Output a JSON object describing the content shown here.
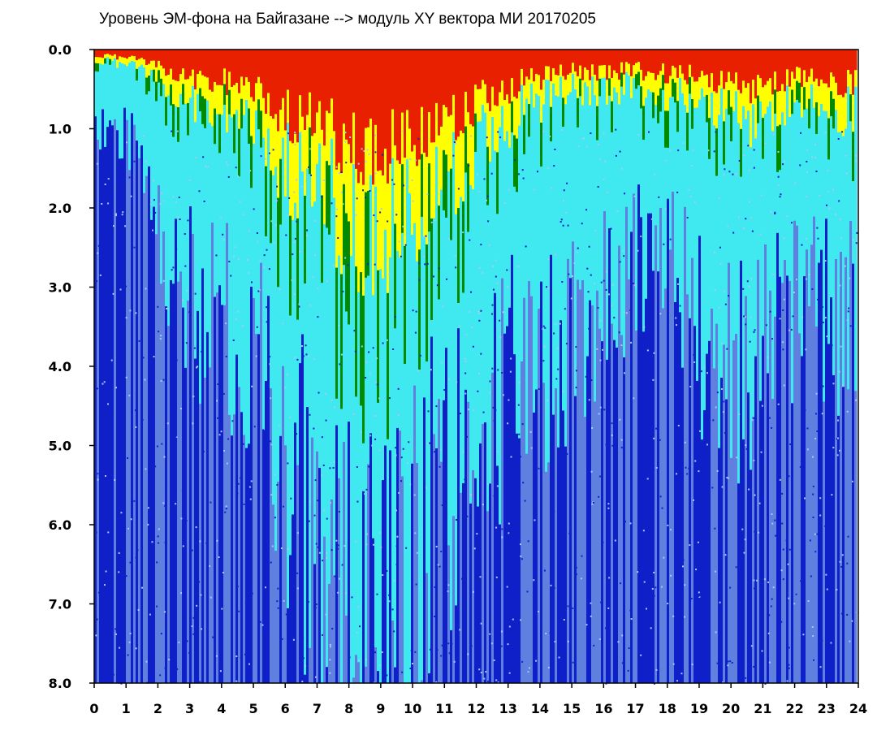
{
  "chart_data": {
    "type": "heatmap",
    "title": "Уровень ЭМ-фона на Байгазане  --> модуль XY вектора МИ  20170205",
    "xlabel": "",
    "ylabel": "",
    "xlim": [
      0,
      24
    ],
    "ylim": [
      0,
      8
    ],
    "y_axis_inverted": true,
    "x_ticks": [
      0,
      1,
      2,
      3,
      4,
      5,
      6,
      7,
      8,
      9,
      10,
      11,
      12,
      13,
      14,
      15,
      16,
      17,
      18,
      19,
      20,
      21,
      22,
      23,
      24
    ],
    "x_tick_labels": [
      "0",
      "1",
      "2",
      "3",
      "4",
      "5",
      "6",
      "7",
      "8",
      "9",
      "10",
      "11",
      "12",
      "13",
      "14",
      "15",
      "16",
      "17",
      "18",
      "19",
      "20",
      "21",
      "22",
      "23",
      "24"
    ],
    "y_ticks": [
      0,
      1,
      2,
      3,
      4,
      5,
      6,
      7,
      8
    ],
    "y_tick_labels": [
      "0.0",
      "1.0",
      "2.0",
      "3.0",
      "4.0",
      "5.0",
      "6.0",
      "7.0",
      "8.0"
    ],
    "grid": false,
    "colors": {
      "high": "#e82000",
      "upper": "#ffff00",
      "mid": "#008a00",
      "low": "#40e8f0",
      "lower": "#6080e0",
      "lowest": "#1020c8",
      "background": "#ffffff",
      "frame": "#000000"
    },
    "hourly_intensity": [
      {
        "hour": 0.5,
        "bright_depth": 0.15,
        "cyan_depth": 1.0
      },
      {
        "hour": 1.5,
        "bright_depth": 0.2,
        "cyan_depth": 1.2
      },
      {
        "hour": 2.5,
        "bright_depth": 0.6,
        "cyan_depth": 3.0
      },
      {
        "hour": 3.5,
        "bright_depth": 0.8,
        "cyan_depth": 3.5
      },
      {
        "hour": 4.5,
        "bright_depth": 0.7,
        "cyan_depth": 3.5
      },
      {
        "hour": 5.5,
        "bright_depth": 1.2,
        "cyan_depth": 4.5
      },
      {
        "hour": 6.5,
        "bright_depth": 1.6,
        "cyan_depth": 5.5
      },
      {
        "hour": 7.5,
        "bright_depth": 2.0,
        "cyan_depth": 7.0
      },
      {
        "hour": 8.5,
        "bright_depth": 2.2,
        "cyan_depth": 8.0
      },
      {
        "hour": 9.5,
        "bright_depth": 2.5,
        "cyan_depth": 8.0
      },
      {
        "hour": 10.5,
        "bright_depth": 1.8,
        "cyan_depth": 6.0
      },
      {
        "hour": 11.5,
        "bright_depth": 1.4,
        "cyan_depth": 5.0
      },
      {
        "hour": 12.5,
        "bright_depth": 1.0,
        "cyan_depth": 4.5
      },
      {
        "hour": 13.5,
        "bright_depth": 0.8,
        "cyan_depth": 4.0
      },
      {
        "hour": 14.5,
        "bright_depth": 0.6,
        "cyan_depth": 4.0
      },
      {
        "hour": 15.5,
        "bright_depth": 0.5,
        "cyan_depth": 3.5
      },
      {
        "hour": 16.5,
        "bright_depth": 0.5,
        "cyan_depth": 3.0
      },
      {
        "hour": 17.5,
        "bright_depth": 0.5,
        "cyan_depth": 2.5
      },
      {
        "hour": 18.5,
        "bright_depth": 0.6,
        "cyan_depth": 3.0
      },
      {
        "hour": 19.5,
        "bright_depth": 0.7,
        "cyan_depth": 4.0
      },
      {
        "hour": 20.5,
        "bright_depth": 0.9,
        "cyan_depth": 4.0
      },
      {
        "hour": 21.5,
        "bright_depth": 0.7,
        "cyan_depth": 3.5
      },
      {
        "hour": 22.5,
        "bright_depth": 0.6,
        "cyan_depth": 3.0
      },
      {
        "hour": 23.5,
        "bright_depth": 0.8,
        "cyan_depth": 3.5
      }
    ]
  }
}
